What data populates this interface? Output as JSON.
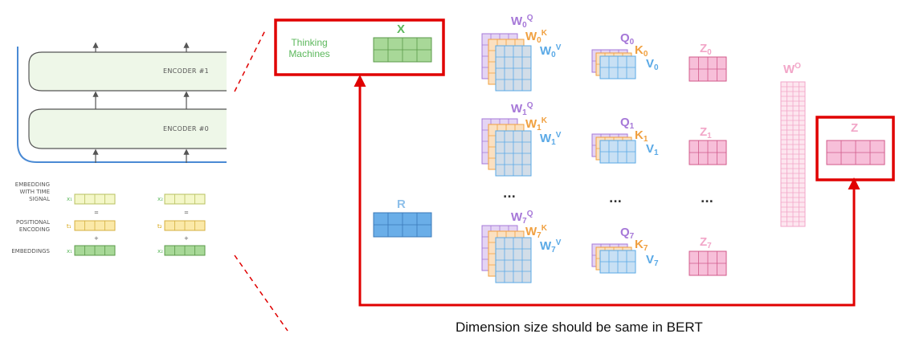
{
  "encoder": {
    "enc1_label": "ENCODER #1",
    "enc0_label": "ENCODER #0"
  },
  "embedding_panel": {
    "embedding_time_label": "EMBEDDING\nWITH TIME\nSIGNAL",
    "positional_label": "POSITIONAL\nENCODING",
    "embeddings_label": "EMBEDDINGS",
    "x1": "x₁",
    "x2": "x₂",
    "t1": "t₁",
    "t2": "t₂",
    "equals": "=",
    "plus": "+"
  },
  "input": {
    "thinking_machines": "Thinking\nMachines",
    "x_label": "X",
    "r_label": "R"
  },
  "heads": [
    {
      "w_base": "W",
      "idx": "0",
      "q": "Q",
      "k": "K",
      "v": "V"
    },
    {
      "w_base": "W",
      "idx": "1",
      "q": "Q",
      "k": "K",
      "v": "V"
    },
    {
      "w_base": "W",
      "idx": "7",
      "q": "Q",
      "k": "K",
      "v": "V"
    }
  ],
  "qkv": [
    {
      "q": "Q",
      "k": "K",
      "v": "V",
      "idx": "0"
    },
    {
      "q": "Q",
      "k": "K",
      "v": "V",
      "idx": "1"
    },
    {
      "q": "Q",
      "k": "K",
      "v": "V",
      "idx": "7"
    }
  ],
  "z_outputs": [
    {
      "base": "Z",
      "idx": "0"
    },
    {
      "base": "Z",
      "idx": "1"
    },
    {
      "base": "Z",
      "idx": "7"
    }
  ],
  "ellipsis": "...",
  "wo_label": "W",
  "wo_sup": "O",
  "z_final": "Z",
  "caption": "Dimension size should be same in BERT",
  "colors": {
    "green": "#5cb85c",
    "blue": "#5aa9e6",
    "purple": "#a678d8",
    "orange": "#f0a040",
    "pink": "#f2a6c8",
    "red": "#e00000",
    "encoder_fill": "#eef7e8"
  }
}
